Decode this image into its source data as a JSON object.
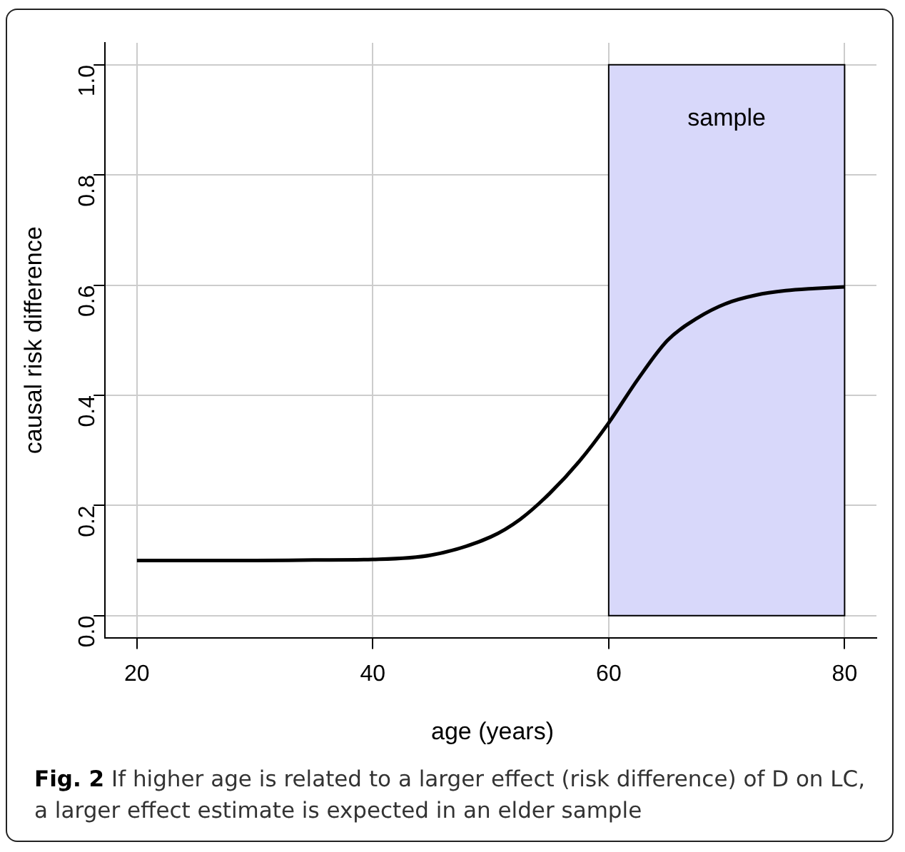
{
  "chart_data": {
    "type": "line",
    "xlabel": "age (years)",
    "ylabel": "causal risk difference",
    "annotations": [
      "Fig. 2",
      "If higher age is related to a larger effect (risk difference) of D on LC, a larger effect estimate is expected in an elder sample"
    ],
    "x": [
      20,
      25,
      30,
      35,
      40,
      45,
      50,
      52.5,
      55,
      57.5,
      60,
      62.5,
      65,
      67.5,
      70,
      72.5,
      75,
      77.5,
      80
    ],
    "series": [
      {
        "color": "#000000",
        "values": [
          0.1,
          0.1,
          0.1,
          0.101,
          0.102,
          0.11,
          0.143,
          0.175,
          0.222,
          0.28,
          0.35,
          0.43,
          0.5,
          0.54,
          0.567,
          0.582,
          0.59,
          0.594,
          0.597
        ]
      }
    ],
    "xlim": [
      17.3,
      82.7
    ],
    "xticks": [
      20,
      40,
      60,
      80
    ],
    "ylim": [
      -0.04,
      1.04
    ],
    "yticks": [
      {
        "value": 0,
        "label": "0.0"
      },
      0.2,
      0.4,
      0.6,
      0.8,
      {
        "value": 1,
        "label": "1.0"
      }
    ],
    "bands": [
      {
        "axis": "x",
        "from": 60,
        "to": 80,
        "label": "sample",
        "color": "#d8d8fa"
      }
    ],
    "grid": true,
    "legend": false,
    "marker": "none",
    "line_style": "solid"
  }
}
